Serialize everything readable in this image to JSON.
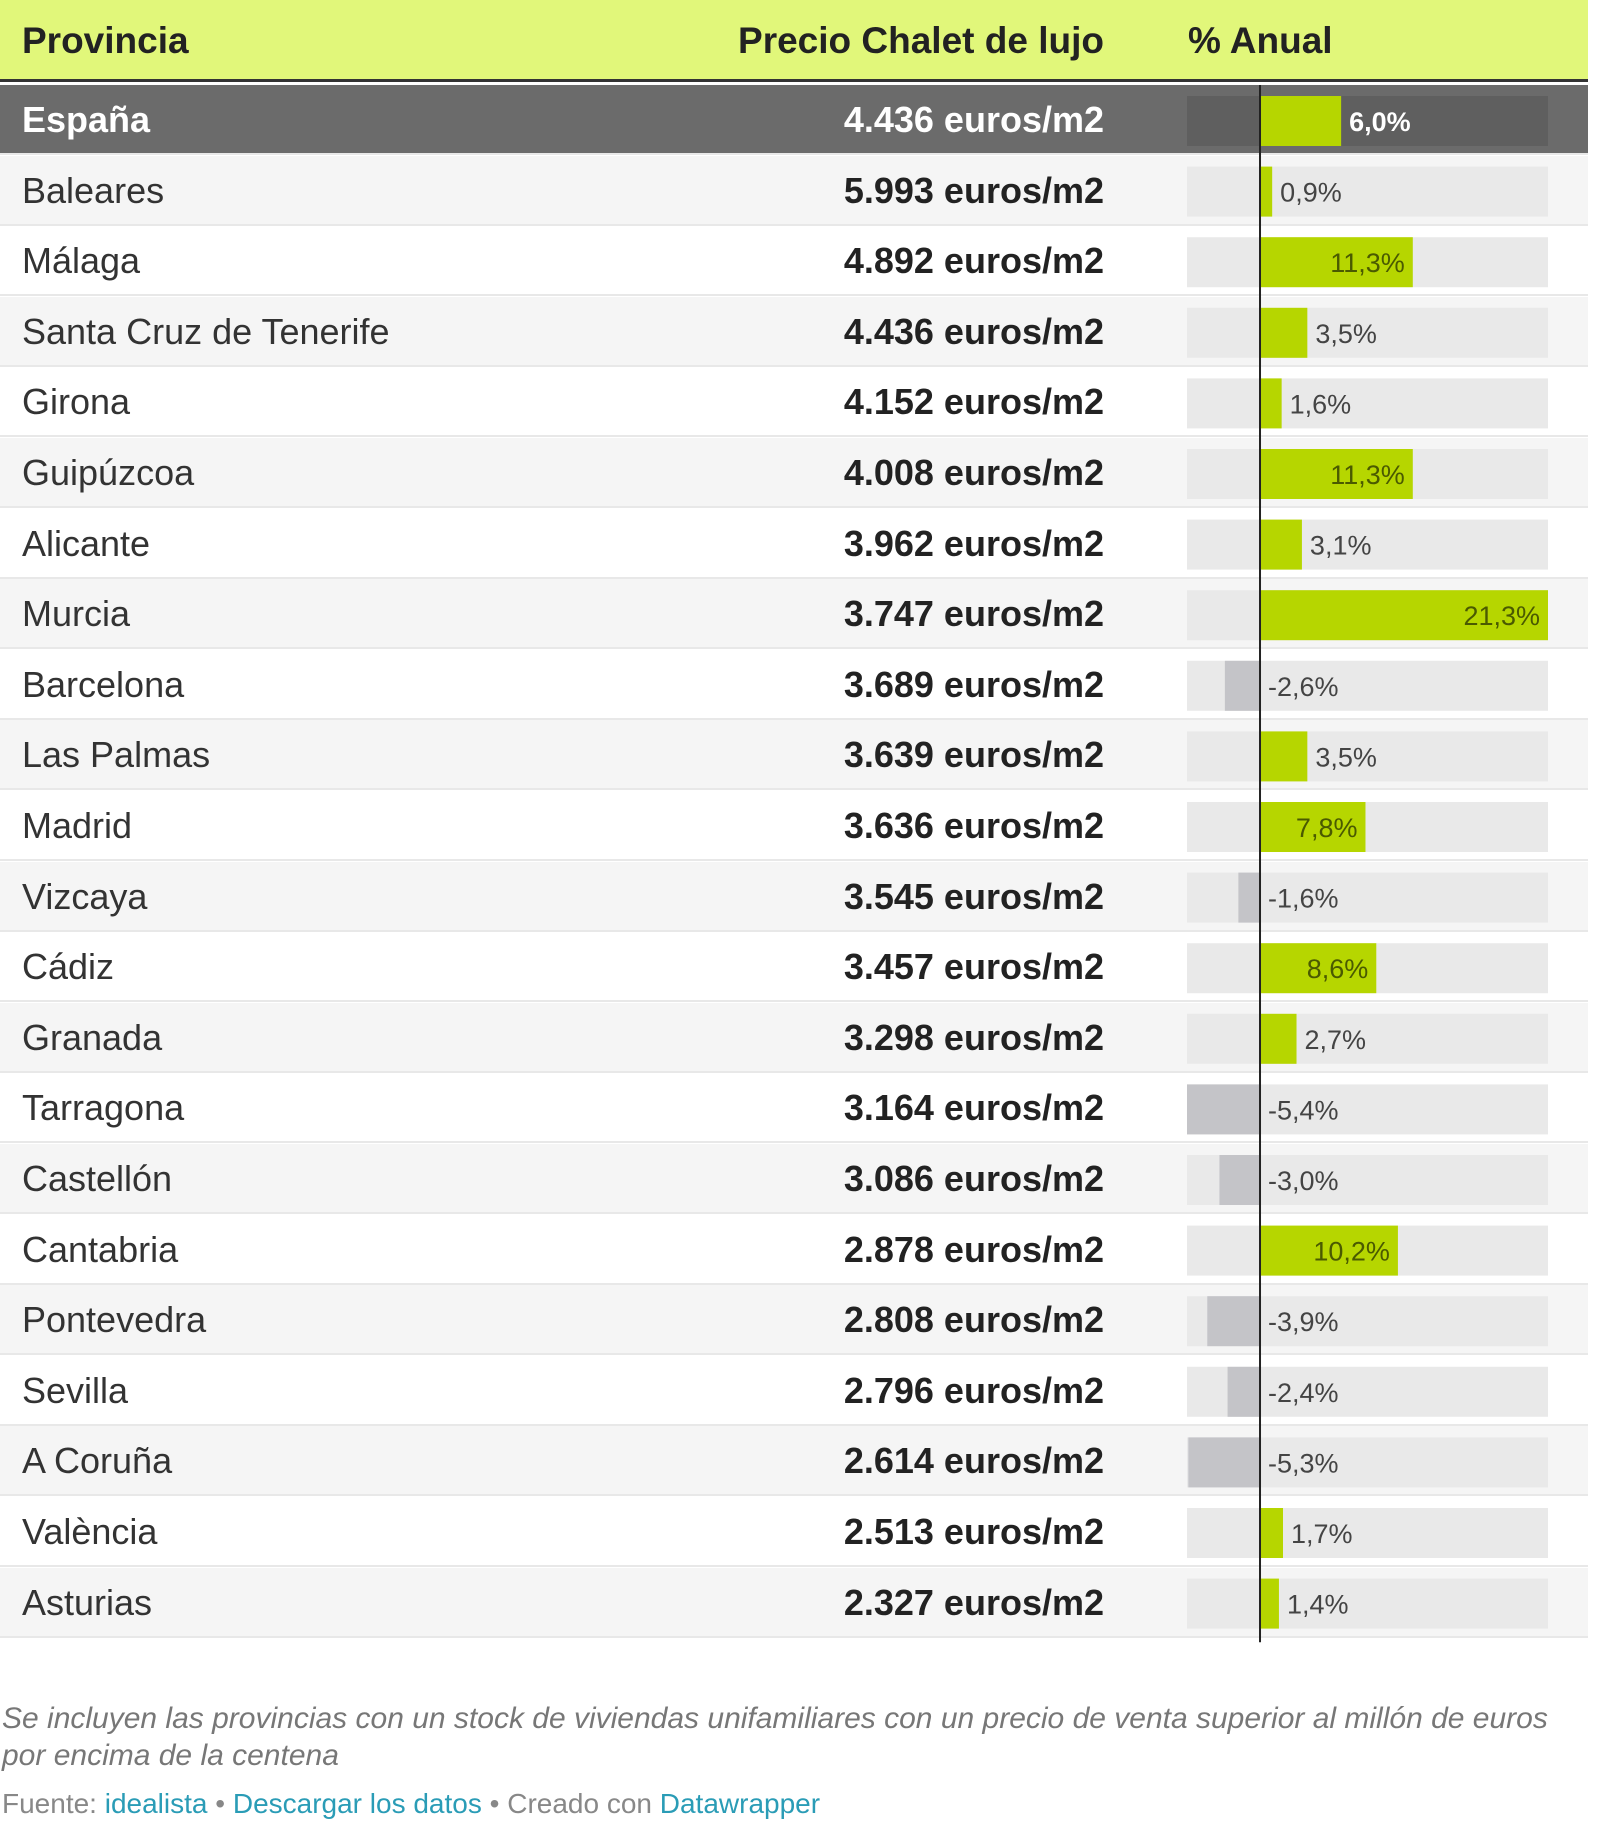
{
  "header": {
    "provincia": "Provincia",
    "precio": "Precio Chalet de lujo",
    "anual": "% Anual"
  },
  "chart_data": {
    "type": "table",
    "columns": [
      "Provincia",
      "Precio Chalet de lujo",
      "% Anual"
    ],
    "rows": [
      {
        "provincia": "España",
        "precio": "4.436 euros/m2",
        "value": 6.0,
        "label": "6,0%",
        "highlight": true
      },
      {
        "provincia": "Baleares",
        "precio": "5.993 euros/m2",
        "value": 0.9,
        "label": "0,9%"
      },
      {
        "provincia": "Málaga",
        "precio": "4.892 euros/m2",
        "value": 11.3,
        "label": "11,3%"
      },
      {
        "provincia": "Santa Cruz de Tenerife",
        "precio": "4.436 euros/m2",
        "value": 3.5,
        "label": "3,5%"
      },
      {
        "provincia": "Girona",
        "precio": "4.152 euros/m2",
        "value": 1.6,
        "label": "1,6%"
      },
      {
        "provincia": "Guipúzcoa",
        "precio": "4.008 euros/m2",
        "value": 11.3,
        "label": "11,3%"
      },
      {
        "provincia": "Alicante",
        "precio": "3.962 euros/m2",
        "value": 3.1,
        "label": "3,1%"
      },
      {
        "provincia": "Murcia",
        "precio": "3.747 euros/m2",
        "value": 21.3,
        "label": "21,3%"
      },
      {
        "provincia": "Barcelona",
        "precio": "3.689 euros/m2",
        "value": -2.6,
        "label": "-2,6%"
      },
      {
        "provincia": "Las Palmas",
        "precio": "3.639 euros/m2",
        "value": 3.5,
        "label": "3,5%"
      },
      {
        "provincia": "Madrid",
        "precio": "3.636 euros/m2",
        "value": 7.8,
        "label": "7,8%"
      },
      {
        "provincia": "Vizcaya",
        "precio": "3.545 euros/m2",
        "value": -1.6,
        "label": "-1,6%"
      },
      {
        "provincia": "Cádiz",
        "precio": "3.457 euros/m2",
        "value": 8.6,
        "label": "8,6%"
      },
      {
        "provincia": "Granada",
        "precio": "3.298 euros/m2",
        "value": 2.7,
        "label": "2,7%"
      },
      {
        "provincia": "Tarragona",
        "precio": "3.164 euros/m2",
        "value": -5.4,
        "label": "-5,4%"
      },
      {
        "provincia": "Castellón",
        "precio": "3.086 euros/m2",
        "value": -3.0,
        "label": "-3,0%"
      },
      {
        "provincia": "Cantabria",
        "precio": "2.878 euros/m2",
        "value": 10.2,
        "label": "10,2%"
      },
      {
        "provincia": "Pontevedra",
        "precio": "2.808 euros/m2",
        "value": -3.9,
        "label": "-3,9%"
      },
      {
        "provincia": "Sevilla",
        "precio": "2.796 euros/m2",
        "value": -2.4,
        "label": "-2,4%"
      },
      {
        "provincia": "A Coruña",
        "precio": "2.614 euros/m2",
        "value": -5.3,
        "label": "-5,3%"
      },
      {
        "provincia": "València",
        "precio": "2.513 euros/m2",
        "value": 1.7,
        "label": "1,7%"
      },
      {
        "provincia": "Asturias",
        "precio": "2.327 euros/m2",
        "value": 1.4,
        "label": "1,4%"
      }
    ],
    "bar_range": [
      -5.4,
      21.3
    ],
    "colors": {
      "header_bg": "#e1f77a",
      "positive": "#b6d600",
      "negative": "#c4c4c8",
      "track": "#e9e9e9",
      "highlight_row": "#6b6b6b"
    }
  },
  "footer": {
    "note": "Se incluyen las provincias con un stock de viviendas unifamiliares con un precio de venta superior al millón de euros por encima de la centena",
    "fuente_prefix": "Fuente: ",
    "fuente_link": "idealista",
    "sep1": " • ",
    "download": "Descargar los datos",
    "sep2": " • Creado con ",
    "datawrapper": "Datawrapper"
  }
}
